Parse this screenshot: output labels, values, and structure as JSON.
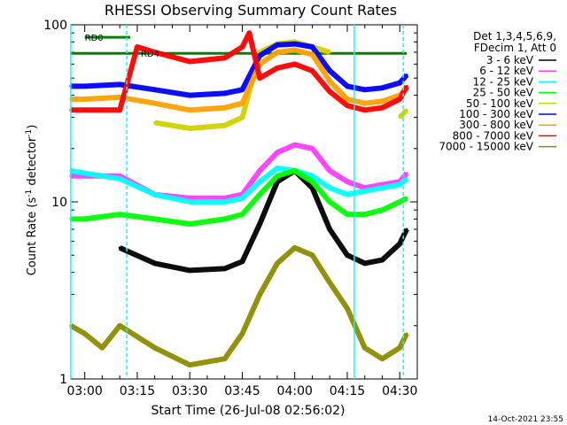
{
  "chart_data": {
    "type": "line",
    "title": "RHESSI Observing Summary Count Rates",
    "xlabel": "Start Time (26-Jul-08 02:56:02)",
    "ylabel": "Count Rate (s^-1 detector^-1)",
    "ylabel_base": "Count Rate (s",
    "ylabel_sup": "-1",
    "ylabel_rest": " detector",
    "ylabel_sup2": "-1",
    "ylabel_end": ")",
    "y_scale": "log",
    "ylim": [
      1,
      100
    ],
    "xlim": [
      "02:56:02",
      "04:35:00"
    ],
    "x_ticks": [
      "03:00",
      "03:15",
      "03:30",
      "03:45",
      "04:00",
      "04:15",
      "04:30"
    ],
    "y_ticks": [
      "1",
      "10",
      "100"
    ],
    "legend_header": [
      "Det 1,3,4,5,6,9,",
      "FDecim 1, Att 0"
    ],
    "legend_position": "right",
    "footer": "14-Oct-2021 23:55",
    "annotations": [
      {
        "text": "RD0",
        "time": "03:00",
        "value": 85
      },
      {
        "text": "RD4",
        "time": "03:16",
        "value": 69
      }
    ],
    "series": [
      {
        "name": "3 - 6 keV",
        "color": "#000000",
        "x": [
          "03:00",
          "03:10",
          "03:20",
          "03:30",
          "03:40",
          "03:45",
          "03:50",
          "03:55",
          "04:00",
          "04:05",
          "04:10",
          "04:15",
          "04:20",
          "04:25",
          "04:30",
          "04:32"
        ],
        "y": [
          null,
          5.5,
          4.5,
          4.1,
          4.2,
          4.6,
          7.5,
          13,
          15,
          12,
          7,
          5,
          4.5,
          4.7,
          5.8,
          7
        ]
      },
      {
        "name": "6 - 12 keV",
        "color": "#ff3cff",
        "x": [
          "02:56",
          "03:00",
          "03:10",
          "03:20",
          "03:30",
          "03:40",
          "03:45",
          "03:50",
          "03:55",
          "04:00",
          "04:05",
          "04:10",
          "04:15",
          "04:20",
          "04:25",
          "04:30",
          "04:32"
        ],
        "y": [
          14,
          14,
          14,
          11,
          10.5,
          10.5,
          11,
          15,
          19,
          21,
          20,
          15,
          13,
          12,
          12.5,
          13,
          14.5
        ]
      },
      {
        "name": "12 - 25 keV",
        "color": "#00ffff",
        "x": [
          "02:56",
          "03:00",
          "03:10",
          "03:20",
          "03:30",
          "03:40",
          "03:45",
          "03:50",
          "03:55",
          "04:00",
          "04:05",
          "04:10",
          "04:15",
          "04:20",
          "04:25",
          "04:30",
          "04:32"
        ],
        "y": [
          15,
          14.5,
          13.5,
          11,
          10,
          10,
          10.5,
          13,
          15.5,
          15,
          14,
          12,
          11,
          11.5,
          12,
          12.5,
          13.5
        ]
      },
      {
        "name": "25 - 50 keV",
        "color": "#00ff00",
        "x": [
          "02:56",
          "03:00",
          "03:10",
          "03:20",
          "03:30",
          "03:40",
          "03:45",
          "03:50",
          "03:55",
          "04:00",
          "04:05",
          "04:10",
          "04:15",
          "04:20",
          "04:25",
          "04:30",
          "04:32"
        ],
        "y": [
          8,
          8,
          8.5,
          8,
          7.5,
          8,
          8.5,
          11,
          14,
          15,
          13,
          10,
          8.5,
          8.5,
          9,
          10,
          10.5
        ]
      },
      {
        "name": "50 - 100 keV",
        "color": "#d2d200",
        "x": [
          "02:56",
          "03:00",
          "03:10",
          "03:20",
          "03:30",
          "03:40",
          "03:45",
          "03:50",
          "03:55",
          "04:00",
          "04:05",
          "04:10",
          "04:15",
          "04:20",
          "04:25",
          "04:30",
          "04:32"
        ],
        "y": [
          null,
          null,
          null,
          28,
          26,
          27,
          30,
          70,
          78,
          80,
          75,
          70,
          null,
          null,
          null,
          30,
          33
        ]
      },
      {
        "name": "100 - 300 keV",
        "color": "#0000ff",
        "x": [
          "02:56",
          "03:00",
          "03:10",
          "03:20",
          "03:30",
          "03:40",
          "03:45",
          "03:50",
          "03:55",
          "04:00",
          "04:05",
          "04:10",
          "04:15",
          "04:20",
          "04:25",
          "04:30",
          "04:32"
        ],
        "y": [
          45,
          45,
          46,
          43,
          40,
          41,
          43,
          67,
          77,
          78,
          75,
          55,
          45,
          43,
          44,
          47,
          52
        ]
      },
      {
        "name": "300 - 800 keV",
        "color": "#ffa000",
        "x": [
          "02:56",
          "03:00",
          "03:10",
          "03:20",
          "03:30",
          "03:40",
          "03:45",
          "03:50",
          "03:55",
          "04:00",
          "04:05",
          "04:10",
          "04:15",
          "04:20",
          "04:25",
          "04:30",
          "04:32"
        ],
        "y": [
          38,
          38,
          39,
          36,
          33,
          34,
          36,
          60,
          70,
          72,
          68,
          48,
          38,
          36,
          37,
          40,
          44
        ]
      },
      {
        "name": "800 - 7000 keV",
        "color": "#ff0000",
        "x": [
          "02:56",
          "03:00",
          "03:10",
          "03:15",
          "03:20",
          "03:30",
          "03:40",
          "03:45",
          "03:47",
          "03:50",
          "03:55",
          "04:00",
          "04:05",
          "04:10",
          "04:15",
          "04:20",
          "04:25",
          "04:30",
          "04:32"
        ],
        "y": [
          33,
          33,
          33,
          75,
          70,
          62,
          65,
          75,
          90,
          50,
          57,
          60,
          55,
          42,
          35,
          33,
          34,
          38,
          45
        ]
      },
      {
        "name": "7000 - 15000 keV",
        "color": "#8c8c00",
        "x": [
          "02:56",
          "03:00",
          "03:05",
          "03:10",
          "03:20",
          "03:30",
          "03:40",
          "03:45",
          "03:50",
          "03:55",
          "04:00",
          "04:05",
          "04:10",
          "04:15",
          "04:20",
          "04:25",
          "04:30",
          "04:32"
        ],
        "y": [
          2,
          1.8,
          1.5,
          2,
          1.5,
          1.2,
          1.3,
          1.8,
          3,
          4.5,
          5.5,
          5,
          3.5,
          2.5,
          1.5,
          1.3,
          1.5,
          1.8
        ]
      }
    ],
    "reference_lines": [
      {
        "color": "#008000",
        "y": 69,
        "from": "02:56",
        "to": "04:32"
      },
      {
        "color": "#008000",
        "y": 85,
        "from": "03:00",
        "to": "03:13"
      }
    ],
    "vertical_markers": [
      {
        "color": "#00ffff",
        "style": "solid",
        "time": "02:56"
      },
      {
        "color": "#00ffff",
        "style": "dashed",
        "time": "03:12"
      },
      {
        "color": "#00ffff",
        "style": "solid",
        "time": "04:17"
      },
      {
        "color": "#00ffff",
        "style": "dashed",
        "time": "04:31"
      }
    ]
  }
}
